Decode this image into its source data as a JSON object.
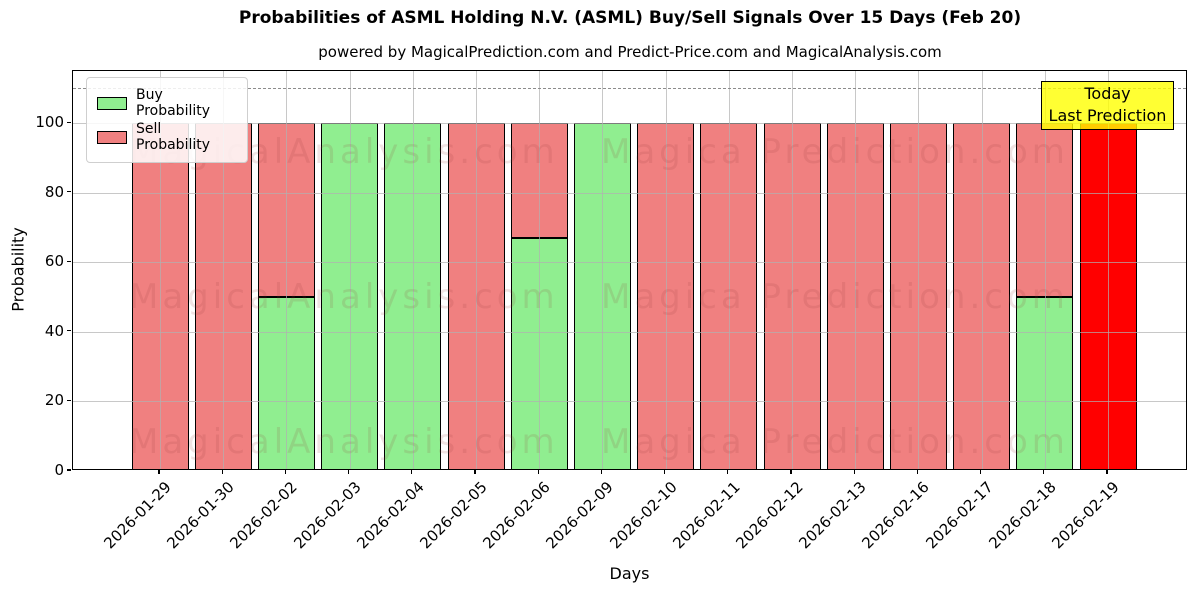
{
  "title": "Probabilities of ASML Holding N.V. (ASML) Buy/Sell Signals Over 15 Days (Feb 20)",
  "subtitle": "powered by MagicalPrediction.com and Predict-Price.com and MagicalAnalysis.com",
  "watermarks": {
    "left_text": "MagicalAnalysis.com",
    "right_text": "Magica Prediction.com"
  },
  "legend": {
    "items": [
      {
        "label": "Buy Probability",
        "color": "#90ee90"
      },
      {
        "label": "Sell Probability",
        "color": "#f08080"
      }
    ]
  },
  "annotation": {
    "line1": "Today",
    "line2": "Last Prediction",
    "bg_color": "#ffff00"
  },
  "colors": {
    "buy": "#90ee90",
    "sell": "#f08080",
    "today_bar": "#ff0000",
    "bar_edge": "#000000",
    "grid": "#b0b0b0",
    "dashed_line": "#8c8c8c"
  },
  "chart_data": {
    "type": "bar",
    "stacked": true,
    "title": "Probabilities of ASML Holding N.V. (ASML) Buy/Sell Signals Over 15 Days (Feb 20)",
    "xlabel": "Days",
    "ylabel": "Probability",
    "categories": [
      "2026-01-29",
      "2026-01-30",
      "2026-02-02",
      "2026-02-03",
      "2026-02-04",
      "2026-02-05",
      "2026-02-06",
      "2026-02-09",
      "2026-02-10",
      "2026-02-11",
      "2026-02-12",
      "2026-02-13",
      "2026-02-16",
      "2026-02-17",
      "2026-02-18",
      "2026-02-19"
    ],
    "series": [
      {
        "name": "Buy Probability",
        "color": "#90ee90",
        "values": [
          0,
          0,
          50,
          100,
          100,
          0,
          67,
          100,
          0,
          0,
          0,
          0,
          0,
          0,
          50,
          0
        ]
      },
      {
        "name": "Sell Probability",
        "color": "#f08080",
        "values": [
          100,
          100,
          50,
          0,
          0,
          100,
          33,
          0,
          100,
          100,
          100,
          100,
          100,
          100,
          50,
          100
        ]
      }
    ],
    "today_bar": {
      "index": 15,
      "category": "2026-02-19",
      "color": "#ff0000",
      "value": 100
    },
    "ylim": [
      0,
      115
    ],
    "yticks": [
      0,
      20,
      40,
      60,
      80,
      100
    ],
    "dashed_line_y": 110,
    "grid": true,
    "legend_position": "upper left"
  }
}
